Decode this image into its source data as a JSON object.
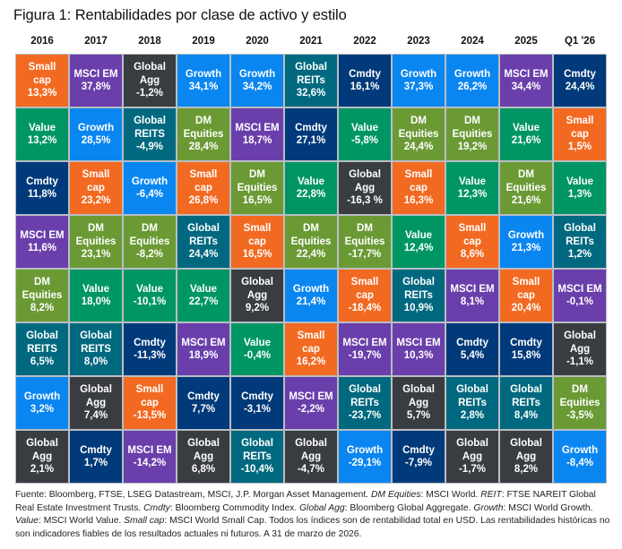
{
  "title": "Figura 1: Rentabilidades por clase de activo y estilo",
  "colors": {
    "Small cap": "#f26a21",
    "MSCI EM": "#6a3fab",
    "Global Agg": "#393c40",
    "Growth": "#0a86f0",
    "Global REITs": "#00697f",
    "Global REITS": "#00697f",
    "Cmdty": "#013a7a",
    "Value": "#009664",
    "DM Equities": "#6b9a35"
  },
  "chart_data": {
    "type": "table",
    "title": "Figura 1: Rentabilidades por clase de activo y estilo",
    "columns": [
      "2016",
      "2017",
      "2018",
      "2019",
      "2020",
      "2021",
      "2022",
      "2023",
      "2024",
      "2025",
      "Q1 '26"
    ],
    "rows": [
      [
        {
          "asset": "Small cap",
          "lines": [
            "Small",
            "cap"
          ],
          "value": "13,3%"
        },
        {
          "asset": "MSCI EM",
          "lines": [
            "MSCI EM"
          ],
          "value": "37,8%"
        },
        {
          "asset": "Global Agg",
          "lines": [
            "Global",
            "Agg"
          ],
          "value": "-1,2%"
        },
        {
          "asset": "Growth",
          "lines": [
            "Growth"
          ],
          "value": "34,1%"
        },
        {
          "asset": "Growth",
          "lines": [
            "Growth"
          ],
          "value": "34,2%"
        },
        {
          "asset": "Global REITs",
          "lines": [
            "Global",
            "REITs"
          ],
          "value": "32,6%"
        },
        {
          "asset": "Cmdty",
          "lines": [
            "Cmdty"
          ],
          "value": "16,1%"
        },
        {
          "asset": "Growth",
          "lines": [
            "Growth"
          ],
          "value": "37,3%"
        },
        {
          "asset": "Growth",
          "lines": [
            "Growth"
          ],
          "value": "26,2%"
        },
        {
          "asset": "MSCI EM",
          "lines": [
            "MSCI EM"
          ],
          "value": "34,4%"
        },
        {
          "asset": "Cmdty",
          "lines": [
            "Cmdty"
          ],
          "value": "24,4%"
        }
      ],
      [
        {
          "asset": "Value",
          "lines": [
            "Value"
          ],
          "value": "13,2%"
        },
        {
          "asset": "Growth",
          "lines": [
            "Growth"
          ],
          "value": "28,5%"
        },
        {
          "asset": "Global REITS",
          "lines": [
            "Global",
            "REITS"
          ],
          "value": "-4,9%"
        },
        {
          "asset": "DM Equities",
          "lines": [
            "DM",
            "Equities"
          ],
          "value": "28,4%"
        },
        {
          "asset": "MSCI EM",
          "lines": [
            "MSCI EM"
          ],
          "value": "18,7%"
        },
        {
          "asset": "Cmdty",
          "lines": [
            "Cmdty"
          ],
          "value": "27,1%"
        },
        {
          "asset": "Value",
          "lines": [
            "Value"
          ],
          "value": "-5,8%"
        },
        {
          "asset": "DM Equities",
          "lines": [
            "DM",
            "Equities"
          ],
          "value": "24,4%"
        },
        {
          "asset": "DM Equities",
          "lines": [
            "DM",
            "Equities"
          ],
          "value": "19,2%"
        },
        {
          "asset": "Value",
          "lines": [
            "Value"
          ],
          "value": "21,6%"
        },
        {
          "asset": "Small cap",
          "lines": [
            "Small",
            "cap"
          ],
          "value": "1,5%"
        }
      ],
      [
        {
          "asset": "Cmdty",
          "lines": [
            "Cmdty"
          ],
          "value": "11,8%"
        },
        {
          "asset": "Small cap",
          "lines": [
            "Small",
            "cap"
          ],
          "value": "23,2%"
        },
        {
          "asset": "Growth",
          "lines": [
            "Growth"
          ],
          "value": "-6,4%"
        },
        {
          "asset": "Small cap",
          "lines": [
            "Small",
            "cap"
          ],
          "value": "26,8%"
        },
        {
          "asset": "DM Equities",
          "lines": [
            "DM",
            "Equities"
          ],
          "value": "16,5%"
        },
        {
          "asset": "Value",
          "lines": [
            "Value"
          ],
          "value": "22,8%"
        },
        {
          "asset": "Global Agg",
          "lines": [
            "Global",
            "Agg"
          ],
          "value": "-16,3 %"
        },
        {
          "asset": "Small cap",
          "lines": [
            "Small",
            "cap"
          ],
          "value": "16,3%"
        },
        {
          "asset": "Value",
          "lines": [
            "Value"
          ],
          "value": "12,3%"
        },
        {
          "asset": "DM Equities",
          "lines": [
            "DM",
            "Equities"
          ],
          "value": "21,6%"
        },
        {
          "asset": "Value",
          "lines": [
            "Value"
          ],
          "value": "1,3%"
        }
      ],
      [
        {
          "asset": "MSCI EM",
          "lines": [
            "MSCI EM"
          ],
          "value": "11,6%"
        },
        {
          "asset": "DM Equities",
          "lines": [
            "DM",
            "Equities"
          ],
          "value": "23,1%"
        },
        {
          "asset": "DM Equities",
          "lines": [
            "DM",
            "Equities"
          ],
          "value": "-8,2%"
        },
        {
          "asset": "Global REITs",
          "lines": [
            "Global",
            "REITs"
          ],
          "value": "24,4%"
        },
        {
          "asset": "Small cap",
          "lines": [
            "Small",
            "cap"
          ],
          "value": "16,5%"
        },
        {
          "asset": "DM Equities",
          "lines": [
            "DM",
            "Equities"
          ],
          "value": "22,4%"
        },
        {
          "asset": "DM Equities",
          "lines": [
            "DM",
            "Equities"
          ],
          "value": "-17,7%"
        },
        {
          "asset": "Value",
          "lines": [
            "Value"
          ],
          "value": "12,4%"
        },
        {
          "asset": "Small cap",
          "lines": [
            "Small",
            "cap"
          ],
          "value": "8,6%"
        },
        {
          "asset": "Growth",
          "lines": [
            "Growth"
          ],
          "value": "21,3%"
        },
        {
          "asset": "Global REITs",
          "lines": [
            "Global",
            "REITs"
          ],
          "value": "1,2%"
        }
      ],
      [
        {
          "asset": "DM Equities",
          "lines": [
            "DM",
            "Equities"
          ],
          "value": "8,2%"
        },
        {
          "asset": "Value",
          "lines": [
            "Value"
          ],
          "value": "18,0%"
        },
        {
          "asset": "Value",
          "lines": [
            "Value"
          ],
          "value": "-10,1%"
        },
        {
          "asset": "Value",
          "lines": [
            "Value"
          ],
          "value": "22,7%"
        },
        {
          "asset": "Global Agg",
          "lines": [
            "Global",
            "Agg"
          ],
          "value": "9,2%"
        },
        {
          "asset": "Growth",
          "lines": [
            "Growth"
          ],
          "value": "21,4%"
        },
        {
          "asset": "Small cap",
          "lines": [
            "Small",
            "cap"
          ],
          "value": "-18,4%"
        },
        {
          "asset": "Global REITs",
          "lines": [
            "Global",
            "REITs"
          ],
          "value": "10,9%"
        },
        {
          "asset": "MSCI EM",
          "lines": [
            "MSCI EM"
          ],
          "value": "8,1%"
        },
        {
          "asset": "Small cap",
          "lines": [
            "Small",
            "cap"
          ],
          "value": "20,4%"
        },
        {
          "asset": "MSCI EM",
          "lines": [
            "MSCI EM"
          ],
          "value": "-0,1%"
        }
      ],
      [
        {
          "asset": "Global REITS",
          "lines": [
            "Global",
            "REITS"
          ],
          "value": "6,5%"
        },
        {
          "asset": "Global REITS",
          "lines": [
            "Global",
            "REITS"
          ],
          "value": "8,0%"
        },
        {
          "asset": "Cmdty",
          "lines": [
            "Cmdty"
          ],
          "value": "-11,3%"
        },
        {
          "asset": "MSCI EM",
          "lines": [
            "MSCI EM"
          ],
          "value": "18,9%"
        },
        {
          "asset": "Value",
          "lines": [
            "Value"
          ],
          "value": "-0,4%"
        },
        {
          "asset": "Small cap",
          "lines": [
            "Small",
            "cap"
          ],
          "value": "16,2%"
        },
        {
          "asset": "MSCI EM",
          "lines": [
            "MSCI EM"
          ],
          "value": "-19,7%"
        },
        {
          "asset": "MSCI EM",
          "lines": [
            "MSCI EM"
          ],
          "value": "10,3%"
        },
        {
          "asset": "Cmdty",
          "lines": [
            "Cmdty"
          ],
          "value": "5,4%"
        },
        {
          "asset": "Cmdty",
          "lines": [
            "Cmdty"
          ],
          "value": "15,8%"
        },
        {
          "asset": "Global Agg",
          "lines": [
            "Global",
            "Agg"
          ],
          "value": "-1,1%"
        }
      ],
      [
        {
          "asset": "Growth",
          "lines": [
            "Growth"
          ],
          "value": "3,2%"
        },
        {
          "asset": "Global Agg",
          "lines": [
            "Global",
            "Agg"
          ],
          "value": "7,4%"
        },
        {
          "asset": "Small cap",
          "lines": [
            "Small",
            "cap"
          ],
          "value": "-13,5%"
        },
        {
          "asset": "Cmdty",
          "lines": [
            "Cmdty"
          ],
          "value": "7,7%"
        },
        {
          "asset": "Cmdty",
          "lines": [
            "Cmdty"
          ],
          "value": "-3,1%"
        },
        {
          "asset": "MSCI EM",
          "lines": [
            "MSCI EM"
          ],
          "value": "-2,2%"
        },
        {
          "asset": "Global REITs",
          "lines": [
            "Global",
            "REITs"
          ],
          "value": "-23,7%"
        },
        {
          "asset": "Global Agg",
          "lines": [
            "Global",
            "Agg"
          ],
          "value": "5,7%"
        },
        {
          "asset": "Global REITs",
          "lines": [
            "Global",
            "REITs"
          ],
          "value": "2,8%"
        },
        {
          "asset": "Global REITs",
          "lines": [
            "Global",
            "REITs"
          ],
          "value": "8,4%"
        },
        {
          "asset": "DM Equities",
          "lines": [
            "DM",
            "Equities"
          ],
          "value": "-3,5%"
        }
      ],
      [
        {
          "asset": "Global Agg",
          "lines": [
            "Global",
            "Agg"
          ],
          "value": "2,1%"
        },
        {
          "asset": "Cmdty",
          "lines": [
            "Cmdty"
          ],
          "value": "1,7%"
        },
        {
          "asset": "MSCI EM",
          "lines": [
            "MSCI EM"
          ],
          "value": "-14,2%"
        },
        {
          "asset": "Global Agg",
          "lines": [
            "Global",
            "Agg"
          ],
          "value": "6,8%"
        },
        {
          "asset": "Global REITs",
          "lines": [
            "Global",
            "REITs"
          ],
          "value": "-10,4%"
        },
        {
          "asset": "Global Agg",
          "lines": [
            "Global",
            "Agg"
          ],
          "value": "-4,7%"
        },
        {
          "asset": "Growth",
          "lines": [
            "Growth"
          ],
          "value": "-29,1%"
        },
        {
          "asset": "Cmdty",
          "lines": [
            "Cmdty"
          ],
          "value": "-7,9%"
        },
        {
          "asset": "Global Agg",
          "lines": [
            "Global",
            "Agg"
          ],
          "value": "-1,7%"
        },
        {
          "asset": "Global Agg",
          "lines": [
            "Global",
            "Agg"
          ],
          "value": "8,2%"
        },
        {
          "asset": "Growth",
          "lines": [
            "Growth"
          ],
          "value": "-8,4%"
        }
      ]
    ]
  },
  "footnote": [
    {
      "t": "Fuente: Bloomberg, FTSE, LSEG Datastream, MSCI, J.P. Morgan Asset Management. ",
      "i": false
    },
    {
      "t": "DM Equities",
      "i": true
    },
    {
      "t": ": MSCI World. ",
      "i": false
    },
    {
      "t": "REIT",
      "i": true
    },
    {
      "t": ": FTSE NAREIT Global Real Estate Investment Trusts. ",
      "i": false
    },
    {
      "t": "Cmdty",
      "i": true
    },
    {
      "t": ": Bloomberg Commodity Index. ",
      "i": false
    },
    {
      "t": "Global Agg",
      "i": true
    },
    {
      "t": ": Bloomberg Global Aggregate. ",
      "i": false
    },
    {
      "t": "Growth",
      "i": true
    },
    {
      "t": ": MSCI World Growth. ",
      "i": false
    },
    {
      "t": "Value",
      "i": true
    },
    {
      "t": ": MSCI World Value. ",
      "i": false
    },
    {
      "t": "Small cap",
      "i": true
    },
    {
      "t": ": MSCI World Small Cap. Todos los índices son de rentabilidad total en USD. Las rentabilidades históricas no son indicadores fiables de los resultados actuales ni futuros. A 31 de marzo de 2026.",
      "i": false
    }
  ]
}
